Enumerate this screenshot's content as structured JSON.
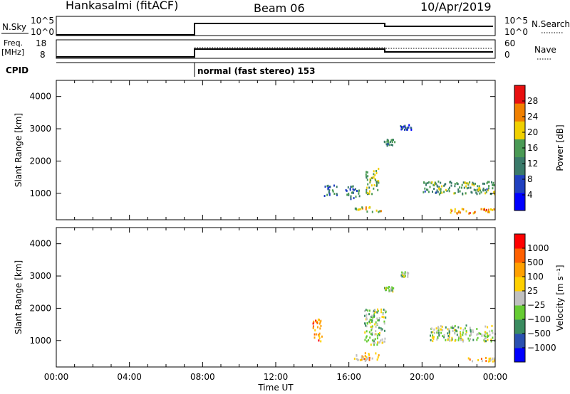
{
  "header": {
    "station": "Hankasalmi (fitACF)",
    "beam": "Beam 06",
    "date": "10/Apr/2019"
  },
  "top_panels": {
    "nsky_label": "N.Sky",
    "nsky_ticks": [
      "10^5",
      "10^0"
    ],
    "nsearch_label": "N.Search",
    "nsearch_ticks": [
      "10^5",
      "10^0"
    ],
    "freq_label": "Freq.",
    "freq_unit": "[MHz]",
    "freq_ticks": [
      "18",
      "8"
    ],
    "nave_label": "Nave",
    "nave_ticks": [
      "60",
      "0"
    ],
    "cpid_label": "CPID",
    "cpid_value": "normal (fast stereo) 153"
  },
  "chart_data": [
    {
      "type": "heatmap",
      "name": "power",
      "xlabel": "",
      "ylabel": "Slant Range [km]",
      "yticks": [
        "1000",
        "2000",
        "3000",
        "4000"
      ],
      "xlim_hours": [
        0,
        24
      ],
      "ylim_km": [
        180,
        4500
      ],
      "colorbar_label": "Power [dB]",
      "colorbar_ticks": [
        "28",
        "24",
        "20",
        "16",
        "12",
        "8",
        "4"
      ],
      "colorbar_colors": [
        "#0000ff",
        "#2040c0",
        "#3a7a6a",
        "#4a9a55",
        "#f0d000",
        "#f08000",
        "#e81010"
      ],
      "regions": [
        {
          "x": [
            14.6,
            15.4
          ],
          "y": [
            950,
            1300
          ],
          "level": 0.3
        },
        {
          "x": [
            16.9,
            17.6
          ],
          "y": [
            1000,
            1800
          ],
          "level": 0.55
        },
        {
          "x": [
            15.8,
            16.6
          ],
          "y": [
            850,
            1250
          ],
          "level": 0.35
        },
        {
          "x": [
            16.2,
            17.8
          ],
          "y": [
            450,
            600
          ],
          "level": 0.6
        },
        {
          "x": [
            17.9,
            18.5
          ],
          "y": [
            2500,
            2700
          ],
          "level": 0.4
        },
        {
          "x": [
            18.7,
            19.4
          ],
          "y": [
            3000,
            3150
          ],
          "level": 0.25
        },
        {
          "x": [
            20.0,
            24.0
          ],
          "y": [
            1000,
            1400
          ],
          "level": 0.45
        },
        {
          "x": [
            21.5,
            24.0
          ],
          "y": [
            400,
            550
          ],
          "level": 0.75
        }
      ]
    },
    {
      "type": "heatmap",
      "name": "velocity",
      "xlabel": "Time UT",
      "ylabel": "Slant Range [km]",
      "xticks": [
        "00:00",
        "04:00",
        "08:00",
        "12:00",
        "16:00",
        "20:00",
        "00:00"
      ],
      "yticks": [
        "1000",
        "2000",
        "3000",
        "4000"
      ],
      "xlim_hours": [
        0,
        24
      ],
      "ylim_km": [
        180,
        4500
      ],
      "colorbar_label": "Velocity [m s⁻¹]",
      "colorbar_ticks": [
        "1000",
        "500",
        "100",
        "25",
        "−25",
        "−100",
        "−500",
        "−1000"
      ],
      "colorbar_colors": [
        "#0000ff",
        "#2a50b0",
        "#3a8c60",
        "#66cc33",
        "#c0c0c0",
        "#ffd000",
        "#ffa000",
        "#ff6000",
        "#ff0000"
      ],
      "regions": [
        {
          "x": [
            16.8,
            18.0
          ],
          "y": [
            900,
            2000
          ],
          "level": 0.45
        },
        {
          "x": [
            17.9,
            18.4
          ],
          "y": [
            2550,
            2700
          ],
          "level": 0.45
        },
        {
          "x": [
            18.8,
            19.3
          ],
          "y": [
            3000,
            3150
          ],
          "level": 0.45
        },
        {
          "x": [
            20.4,
            24.0
          ],
          "y": [
            1000,
            1500
          ],
          "level": 0.45
        },
        {
          "x": [
            16.2,
            17.6
          ],
          "y": [
            400,
            650
          ],
          "level": 0.65
        },
        {
          "x": [
            14.0,
            14.5
          ],
          "y": [
            1000,
            1700
          ],
          "level": 0.75
        },
        {
          "x": [
            22.5,
            24.0
          ],
          "y": [
            380,
            500
          ],
          "level": 0.65
        }
      ]
    }
  ]
}
